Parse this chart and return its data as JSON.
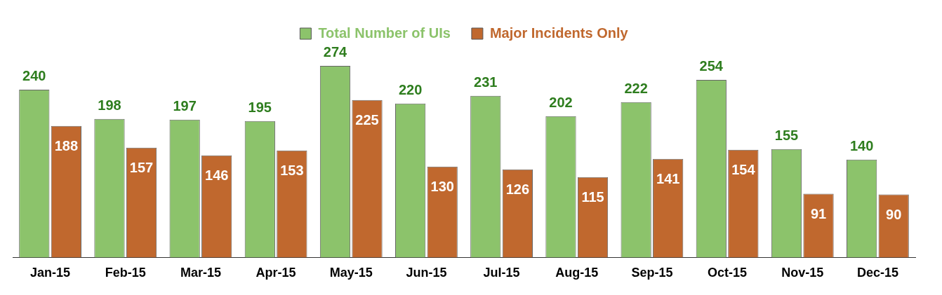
{
  "chart_data": {
    "type": "bar",
    "categories": [
      "Jan-15",
      "Feb-15",
      "Mar-15",
      "Apr-15",
      "May-15",
      "Jun-15",
      "Jul-15",
      "Aug-15",
      "Sep-15",
      "Oct-15",
      "Nov-15",
      "Dec-15"
    ],
    "series": [
      {
        "name": "Total Number of UIs",
        "color": "#8cc36b",
        "values": [
          240,
          198,
          197,
          195,
          274,
          220,
          231,
          202,
          222,
          254,
          155,
          140
        ]
      },
      {
        "name": "Major Incidents Only",
        "color": "#c0682e",
        "values": [
          188,
          157,
          146,
          153,
          225,
          130,
          126,
          115,
          141,
          154,
          91,
          90
        ]
      }
    ],
    "data_labels": true,
    "legend": "top",
    "grid": false
  }
}
